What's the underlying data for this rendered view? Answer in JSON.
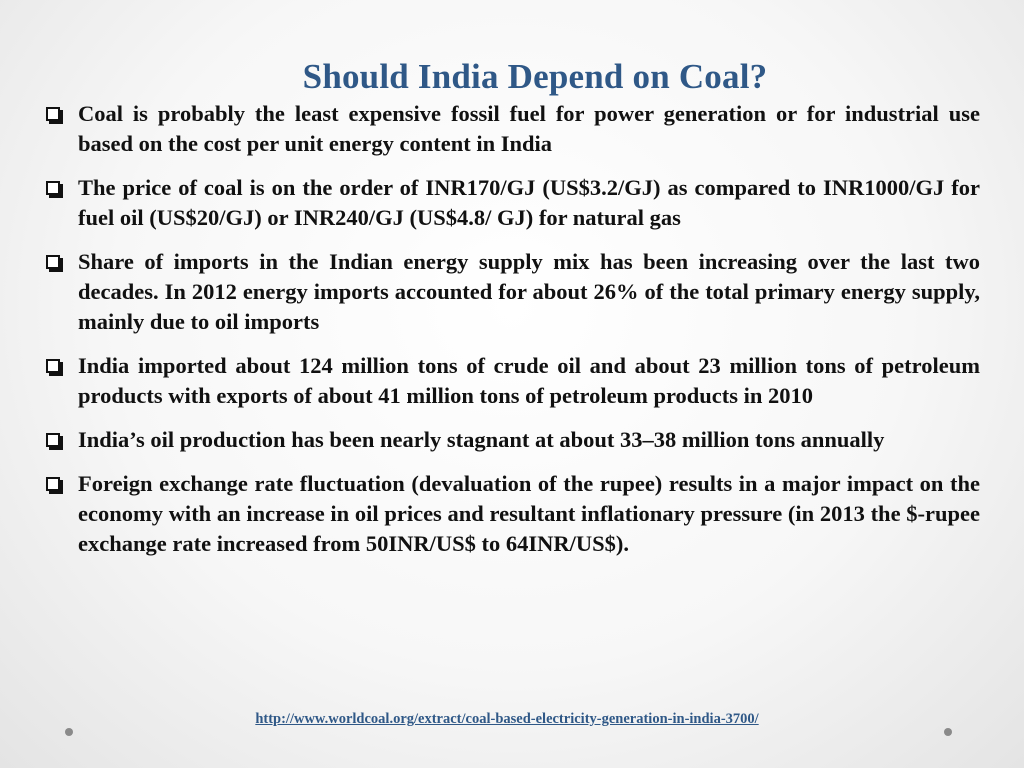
{
  "slide": {
    "title": "Should India Depend on Coal?",
    "bullets": [
      "Coal is probably the least expensive fossil fuel for power generation or for industrial use based on the cost per unit energy content in India",
      "The price of coal is on the order of INR170/GJ (US$3.2/GJ) as compared to INR1000/GJ for fuel oil (US$20/GJ) or INR240/GJ (US$4.8/ GJ) for natural gas",
      "Share of imports in the Indian energy supply mix has been increasing over the last two decades. In 2012 energy imports accounted for about 26% of the total primary energy supply, mainly due to oil imports",
      "India imported about 124 million tons of crude oil and about 23 million tons of petroleum products with exports of about 41 million tons of petroleum products in 2010",
      "India’s oil production has been nearly stagnant at about 33–38 million tons annually",
      "Foreign exchange rate fluctuation (devaluation of the rupee) results in a major impact on the economy with an increase in oil prices and resultant inflationary pressure (in 2013 the $-rupee exchange rate increased from 50INR/US$ to 64INR/US$)."
    ],
    "source_link": "http://www.worldcoal.org/extract/coal-based-electricity-generation-in-india-3700/"
  },
  "icons": {
    "bullet": "checkbox-bullet-icon",
    "corner_dots": "dot-icon"
  },
  "colors": {
    "title": "#2f5887",
    "text": "#111111",
    "link": "#2f5887",
    "background": "#f7f7f7"
  }
}
